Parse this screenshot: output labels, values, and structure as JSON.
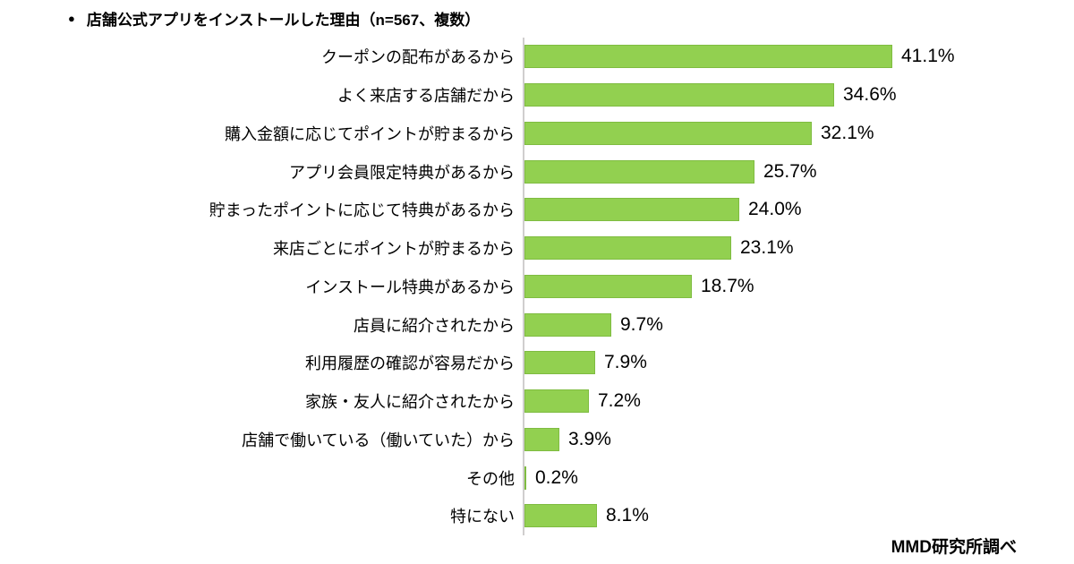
{
  "title": {
    "bullet": "●",
    "text": "店舗公式アプリをインストールした理由（n=567、複数）"
  },
  "source": "MMD研究所調べ",
  "colors": {
    "bar_fill": "#92D050",
    "bar_border": "#7FBC41",
    "axis": "#D0CECE",
    "text": "#000000",
    "background": "#FFFFFF"
  },
  "chart_data": {
    "type": "bar",
    "orientation": "horizontal",
    "title": "店舗公式アプリをインストールした理由（n=567、複数）",
    "categories": [
      "クーポンの配布があるから",
      "よく来店する店舗だから",
      "購入金額に応じてポイントが貯まるから",
      "アプリ会員限定特典があるから",
      "貯まったポイントに応じて特典があるから",
      "来店ごとにポイントが貯まるから",
      "インストール特典があるから",
      "店員に紹介されたから",
      "利用履歴の確認が容易だから",
      "家族・友人に紹介されたから",
      "店舗で働いている（働いていた）から",
      "その他",
      "特にない"
    ],
    "values": [
      41.1,
      34.6,
      32.1,
      25.7,
      24.0,
      23.1,
      18.7,
      9.7,
      7.9,
      7.2,
      3.9,
      0.2,
      8.1
    ],
    "value_labels": [
      "41.1%",
      "34.6%",
      "32.1%",
      "25.7%",
      "24.0%",
      "23.1%",
      "18.7%",
      "9.7%",
      "7.9%",
      "7.2%",
      "3.9%",
      "0.2%",
      "8.1%"
    ],
    "xlabel": "",
    "ylabel": "",
    "xlim": [
      0,
      45
    ],
    "grid": false,
    "legend": "none",
    "data_labels": true
  }
}
